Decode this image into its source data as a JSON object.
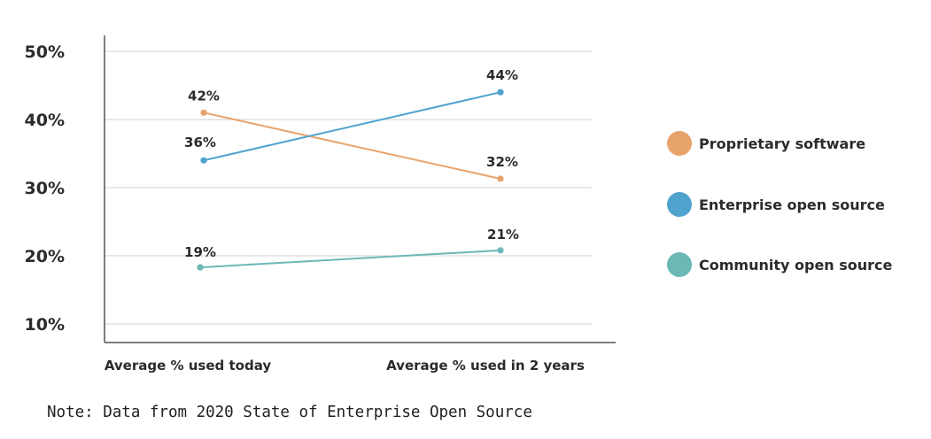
{
  "chart_data": {
    "type": "line",
    "title": "",
    "xlabel": "",
    "ylabel": "",
    "categories": [
      "Average % used today",
      "Average % used in 2 years"
    ],
    "y_ticks": [
      10,
      20,
      30,
      40,
      50
    ],
    "y_tick_labels": [
      "10%",
      "20%",
      "30%",
      "40%",
      "50%"
    ],
    "ylim": [
      8,
      51
    ],
    "grid": true,
    "legend_position": "right",
    "series": [
      {
        "name": "Proprietary software",
        "values": [
          42,
          32
        ],
        "labels": [
          "42%",
          "32%"
        ],
        "color": "#e8a36b",
        "plot_values": [
          41,
          31.3
        ]
      },
      {
        "name": "Enterprise open source",
        "values": [
          36,
          44
        ],
        "labels": [
          "36%",
          "44%"
        ],
        "color": "#4fa3ce",
        "plot_values": [
          34,
          44
        ]
      },
      {
        "name": "Community open source",
        "values": [
          19,
          21
        ],
        "labels": [
          "19%",
          "21%"
        ],
        "color": "#6bb8b6",
        "plot_values": [
          18.3,
          20.8
        ]
      }
    ]
  },
  "note": "Note: Data from 2020 State of Enterprise Open Source"
}
